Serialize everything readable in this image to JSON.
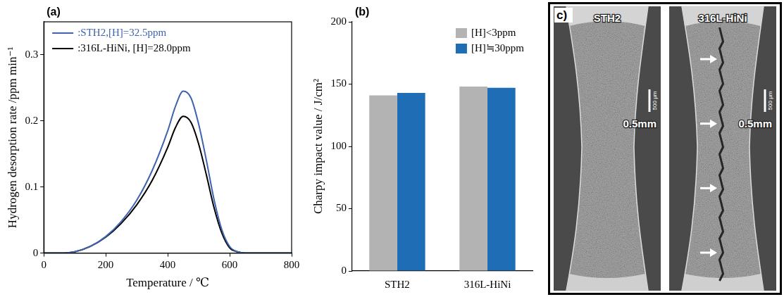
{
  "chart_data": [
    {
      "panel": "(a)",
      "type": "line",
      "x_label": "Temperature / ℃",
      "y_label": "Hydrogen desorption rate /ppm min⁻¹",
      "x": [
        0,
        50,
        100,
        150,
        200,
        250,
        300,
        350,
        400,
        425,
        450,
        475,
        500,
        525,
        550,
        575,
        600,
        625,
        650,
        700,
        800
      ],
      "series": [
        {
          "name": ":STH2,[H]=32.5ppm",
          "color": "#3f63b0",
          "values": [
            0,
            0,
            0.002,
            0.01,
            0.025,
            0.048,
            0.08,
            0.125,
            0.185,
            0.222,
            0.245,
            0.235,
            0.195,
            0.14,
            0.08,
            0.035,
            0.01,
            0.002,
            0,
            0,
            0
          ]
        },
        {
          "name": ":316L-HiNi, [H]=28.0ppm",
          "color": "#000000",
          "values": [
            0,
            0,
            0.002,
            0.01,
            0.024,
            0.045,
            0.073,
            0.11,
            0.16,
            0.19,
            0.207,
            0.198,
            0.165,
            0.118,
            0.068,
            0.03,
            0.008,
            0.002,
            0,
            0,
            0
          ]
        }
      ],
      "xlim": [
        0,
        800
      ],
      "xticks": [
        0,
        200,
        400,
        600,
        800
      ],
      "ylim": [
        0,
        0.35
      ],
      "yticks": [
        0,
        0.1,
        0.2,
        0.3
      ],
      "grid": false,
      "legend": "upper left"
    },
    {
      "panel": "(b)",
      "type": "bar",
      "y_label": "Charpy impact value / J/cm²",
      "categories": [
        "STH2",
        "316L-HiNi"
      ],
      "series": [
        {
          "name": "[H]<3ppm",
          "color": "#b3b3b3",
          "values": [
            141,
            148
          ]
        },
        {
          "name": "[H]≒30ppm",
          "color": "#1f6db4",
          "values": [
            143,
            147
          ]
        }
      ],
      "ylim": [
        0,
        200
      ],
      "yticks": [
        0,
        50,
        100,
        150,
        200
      ],
      "grid": false,
      "legend": "upper right"
    }
  ],
  "image_panel": {
    "panel": "c)",
    "images": [
      {
        "label": "STH2",
        "scale_bar": "0.5mm",
        "scale_text": "500 μm",
        "arrows": 0
      },
      {
        "label": "316L-HiNi",
        "scale_bar": "0.5mm",
        "scale_text": "500 μm",
        "arrows": 4
      }
    ]
  }
}
